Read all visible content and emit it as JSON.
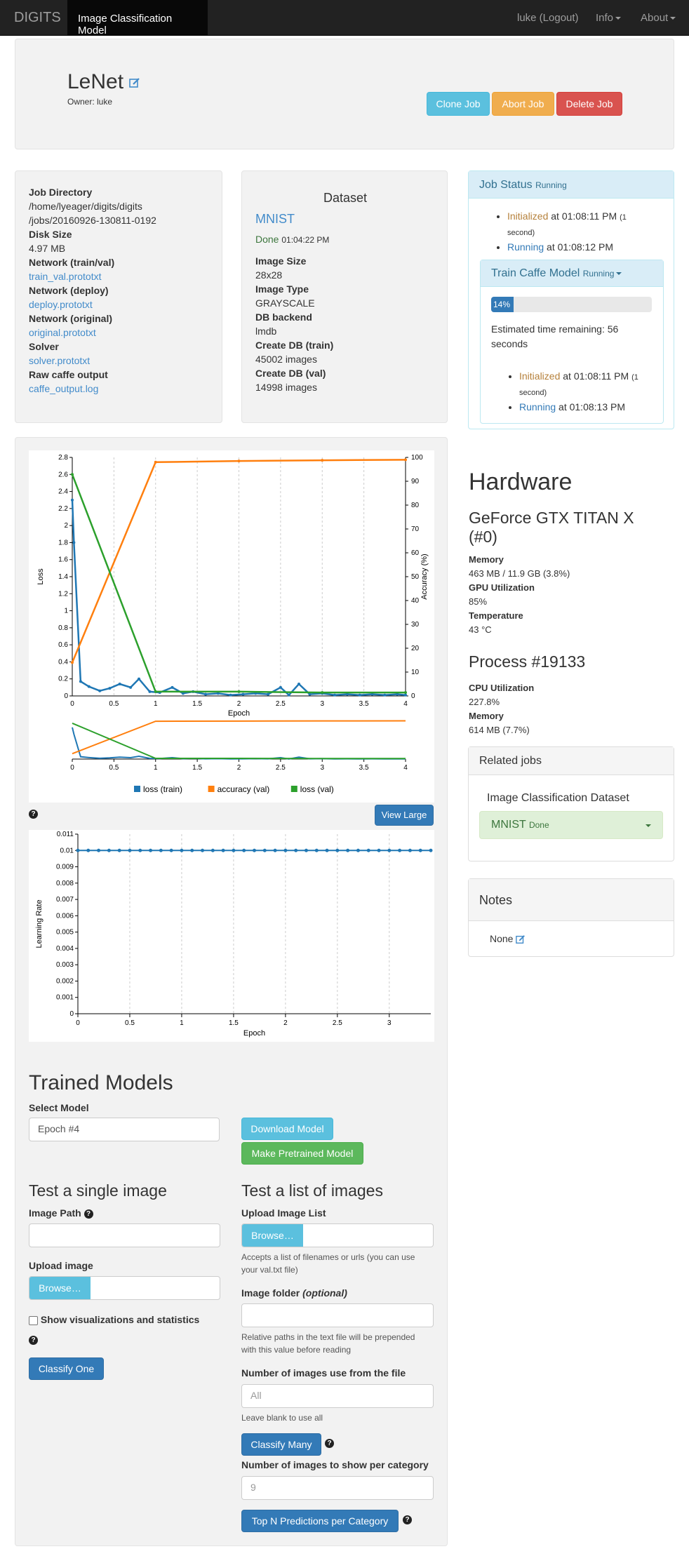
{
  "nav": {
    "brand": "DIGITS",
    "active": "Image Classification Model",
    "user": "luke (Logout)",
    "info": "Info",
    "about": "About"
  },
  "header": {
    "title": "LeNet",
    "owner": "Owner: luke",
    "clone": "Clone Job",
    "abort": "Abort Job",
    "delete": "Delete Job"
  },
  "job_info": {
    "dir_label": "Job Directory",
    "dir_line1": "/home/lyeager/digits/digits",
    "dir_line2": "/jobs/20160926-130811-0192",
    "disk_label": "Disk Size",
    "disk_val": "4.97 MB",
    "net_train_label": "Network (train/val)",
    "net_train_link": "train_val.prototxt",
    "net_deploy_label": "Network (deploy)",
    "net_deploy_link": "deploy.prototxt",
    "net_orig_label": "Network (original)",
    "net_orig_link": "original.prototxt",
    "solver_label": "Solver",
    "solver_link": "solver.prototxt",
    "raw_label": "Raw caffe output",
    "raw_link": "caffe_output.log"
  },
  "dataset": {
    "heading": "Dataset",
    "name": "MNIST",
    "status": "Done",
    "time": "01:04:22 PM",
    "size_label": "Image Size",
    "size_val": "28x28",
    "type_label": "Image Type",
    "type_val": "GRAYSCALE",
    "backend_label": "DB backend",
    "backend_val": "lmdb",
    "train_label": "Create DB (train)",
    "train_val": "45002 images",
    "val_label": "Create DB (val)",
    "val_val": "14998 images"
  },
  "job_status": {
    "title": "Job Status",
    "state": "Running",
    "s1_state": "Initialized",
    "s1_time": "at 01:08:11 PM",
    "s1_dur1": "(1",
    "s1_dur2": "second)",
    "s2_state": "Running",
    "s2_time": "at 01:08:12 PM",
    "task_title": "Train Caffe Model",
    "task_state": "Running",
    "progress_label": "14%",
    "progress": 0.14,
    "eta_line1": "Estimated time remaining: 56",
    "eta_line2": "seconds",
    "t1_state": "Initialized",
    "t1_time": "at 01:08:11 PM",
    "t1_dur1": "(1",
    "t1_dur2": "second)",
    "t2_state": "Running",
    "t2_time": "at 01:08:13 PM"
  },
  "hardware": {
    "title": "Hardware",
    "gpu_line1": "GeForce GTX TITAN X",
    "gpu_line2": "(#0)",
    "mem_label": "Memory",
    "mem_val": "463 MB / 11.9 GB (3.8%)",
    "util_label": "GPU Utilization",
    "util_val": "85%",
    "temp_label": "Temperature",
    "temp_val": "43 °C",
    "proc_title": "Process #19133",
    "cpu_label": "CPU Utilization",
    "cpu_val": "227.8%",
    "pmem_label": "Memory",
    "pmem_val": "614 MB (7.7%)"
  },
  "related": {
    "title": "Related jobs",
    "sub": "Image Classification Dataset",
    "job": "MNIST",
    "job_state": "Done"
  },
  "notes": {
    "title": "Notes",
    "val": "None"
  },
  "view_large": "View Large",
  "chart_data": [
    {
      "type": "line",
      "xlabel": "Epoch",
      "ylabel": "Loss",
      "y2label": "Accuracy (%)",
      "xlim": [
        0,
        4
      ],
      "ylim": [
        0,
        2.8
      ],
      "y2lim": [
        0,
        100
      ],
      "xticks": [
        "0",
        "0.5",
        "1",
        "1.5",
        "2",
        "2.5",
        "3",
        "3.5",
        "4"
      ],
      "yticks": [
        "0",
        "0.2",
        "0.4",
        "0.6",
        "0.8",
        "1",
        "1.2",
        "1.4",
        "1.6",
        "1.8",
        "2",
        "2.2",
        "2.4",
        "2.6",
        "2.8"
      ],
      "y2ticks": [
        "0",
        "10",
        "20",
        "30",
        "40",
        "50",
        "60",
        "70",
        "80",
        "90",
        "100"
      ],
      "legend": "bottom",
      "series": [
        {
          "name": "loss (train)",
          "color": "#1f77b4",
          "axis": "left",
          "x": [
            0,
            0.02,
            0.1,
            0.2,
            0.33,
            0.45,
            0.57,
            0.7,
            0.8,
            0.93,
            1.05,
            1.2,
            1.33,
            1.45,
            1.6,
            1.75,
            1.9,
            2.05,
            2.2,
            2.35,
            2.5,
            2.6,
            2.72,
            2.85,
            3,
            3.15,
            3.3,
            3.45,
            3.6,
            3.75,
            3.9,
            4
          ],
          "y": [
            2.3,
            1.8,
            0.17,
            0.11,
            0.06,
            0.09,
            0.14,
            0.1,
            0.2,
            0.05,
            0.04,
            0.1,
            0.03,
            0.05,
            0.02,
            0.03,
            0.01,
            0.02,
            0.03,
            0.02,
            0.1,
            0.01,
            0.14,
            0.02,
            0.03,
            0.01,
            0.02,
            0.01,
            0.02,
            0.01,
            0.02,
            0.01
          ]
        },
        {
          "name": "accuracy (val)",
          "color": "#ff7f0e",
          "axis": "right",
          "x": [
            0,
            1,
            2,
            3,
            4
          ],
          "y": [
            14,
            98,
            98.5,
            98.8,
            99
          ]
        },
        {
          "name": "loss (val)",
          "color": "#2ca02c",
          "axis": "left",
          "x": [
            0,
            1,
            2,
            3,
            4
          ],
          "y": [
            2.6,
            0.05,
            0.05,
            0.04,
            0.04
          ]
        }
      ]
    },
    {
      "type": "line",
      "xlabel": "Epoch",
      "ylabel": "Learning Rate",
      "xlim": [
        0,
        3.4
      ],
      "ylim": [
        0,
        0.011
      ],
      "xticks": [
        "0",
        "0.5",
        "1",
        "1.5",
        "2",
        "2.5",
        "3"
      ],
      "yticks": [
        "0",
        "0.001",
        "0.002",
        "0.003",
        "0.004",
        "0.005",
        "0.006",
        "0.007",
        "0.008",
        "0.009",
        "0.01",
        "0.011"
      ],
      "series": [
        {
          "name": "",
          "color": "#1f77b4",
          "x": [
            0,
            0.1,
            0.2,
            0.3,
            0.4,
            0.5,
            0.6,
            0.7,
            0.8,
            0.9,
            1,
            1.1,
            1.2,
            1.3,
            1.4,
            1.5,
            1.6,
            1.7,
            1.8,
            1.9,
            2,
            2.1,
            2.2,
            2.3,
            2.4,
            2.5,
            2.6,
            2.7,
            2.8,
            2.9,
            3,
            3.1,
            3.2,
            3.3,
            3.4
          ],
          "y": [
            0.01,
            0.01,
            0.01,
            0.01,
            0.01,
            0.01,
            0.01,
            0.01,
            0.01,
            0.01,
            0.01,
            0.01,
            0.01,
            0.01,
            0.01,
            0.01,
            0.01,
            0.01,
            0.01,
            0.01,
            0.01,
            0.01,
            0.01,
            0.01,
            0.01,
            0.01,
            0.01,
            0.01,
            0.01,
            0.01,
            0.01,
            0.01,
            0.01,
            0.01,
            0.01
          ]
        }
      ]
    }
  ],
  "trained": {
    "title": "Trained Models",
    "select_label": "Select Model",
    "select_val": "Epoch #4",
    "download": "Download Model",
    "pretrained": "Make Pretrained Model",
    "single_title": "Test a single image",
    "path_label": "Image Path",
    "upload_label": "Upload image",
    "browse": "Browse…",
    "show_vis": "Show visualizations and statistics",
    "classify_one": "Classify One",
    "list_title": "Test a list of images",
    "list_label": "Upload Image List",
    "list_help1": "Accepts a list of filenames or urls (you can use",
    "list_help2": "your val.txt file)",
    "folder_label": "Image folder",
    "folder_opt": "(optional)",
    "folder_help1": "Relative paths in the text file will be prepended",
    "folder_help2": "with this value before reading",
    "num_label": "Number of images use from the file",
    "num_placeholder": "All",
    "num_help": "Leave blank to use all",
    "classify_many": "Classify Many",
    "per_cat_label": "Number of images to show per category",
    "per_cat_placeholder": "9",
    "topn": "Top N Predictions per Category"
  }
}
